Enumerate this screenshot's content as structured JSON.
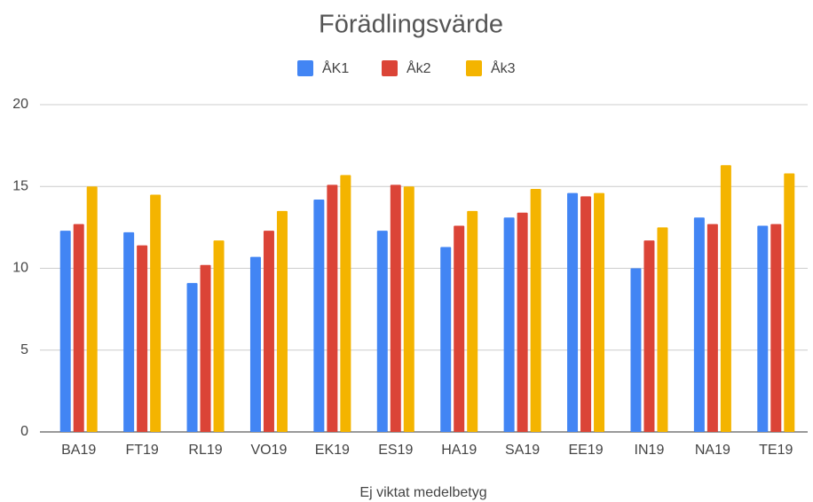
{
  "chart_data": {
    "type": "bar",
    "title": "Förädlingsvärde",
    "x_label": "Ej viktat medelbetyg",
    "categories": [
      "BA19",
      "FT19",
      "RL19",
      "VO19",
      "EK19",
      "ES19",
      "HA19",
      "SA19",
      "EE19",
      "IN19",
      "NA19",
      "TE19"
    ],
    "series": [
      {
        "name": "ÅK1",
        "color": "#4285f4",
        "values": [
          12.3,
          12.2,
          9.1,
          10.7,
          14.2,
          12.3,
          11.3,
          13.1,
          14.6,
          10.0,
          13.1,
          12.6
        ]
      },
      {
        "name": "Åk2",
        "color": "#db4437",
        "values": [
          12.7,
          11.4,
          10.2,
          12.3,
          15.1,
          15.1,
          12.6,
          13.4,
          14.4,
          11.7,
          12.7,
          12.7
        ]
      },
      {
        "name": "Åk3",
        "color": "#f4b400",
        "values": [
          15.0,
          14.5,
          11.7,
          13.5,
          15.7,
          15.0,
          13.5,
          14.85,
          14.6,
          12.5,
          16.3,
          15.8
        ]
      }
    ],
    "ylim": [
      0,
      20
    ],
    "yticks": [
      0,
      5,
      10,
      15,
      20
    ],
    "grid": true,
    "legend": "top"
  }
}
